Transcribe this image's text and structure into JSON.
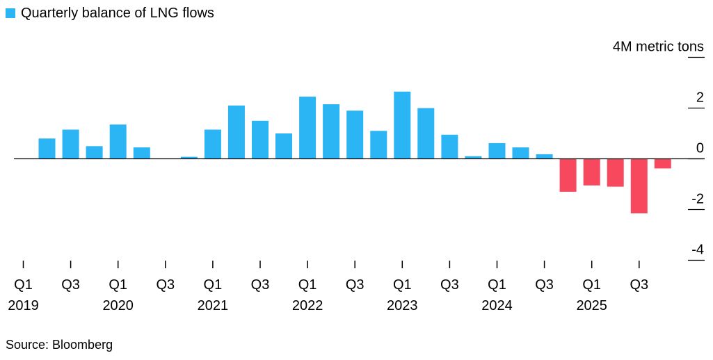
{
  "legend": {
    "label": "Quarterly balance of LNG flows",
    "color": "#2bb5f4"
  },
  "source": "Source: Bloomberg",
  "colors": {
    "positive": "#2bb5f4",
    "negative": "#f8485e",
    "axis": "#000000"
  },
  "chart_data": {
    "type": "bar",
    "title": "",
    "ylabel": "4M metric tons",
    "ylim": [
      -4,
      4
    ],
    "yticks": [
      -4,
      -2,
      0,
      2,
      4
    ],
    "ytick_labels": [
      "-4",
      "-2",
      "0",
      "2",
      "4M metric tons"
    ],
    "categories": [
      "Q1 2019",
      "Q2 2019",
      "Q3 2019",
      "Q4 2019",
      "Q1 2020",
      "Q2 2020",
      "Q3 2020",
      "Q4 2020",
      "Q1 2021",
      "Q2 2021",
      "Q3 2021",
      "Q4 2021",
      "Q1 2022",
      "Q2 2022",
      "Q3 2022",
      "Q4 2022",
      "Q1 2023",
      "Q2 2023",
      "Q3 2023",
      "Q4 2023",
      "Q1 2024",
      "Q2 2024",
      "Q3 2024",
      "Q4 2024",
      "Q1 2025",
      "Q2 2025",
      "Q3 2025",
      "Q4 2025"
    ],
    "series": [
      {
        "name": "Quarterly balance of LNG flows",
        "values": [
          0,
          0.8,
          1.15,
          0.5,
          1.35,
          0.45,
          0,
          0.08,
          1.15,
          2.1,
          1.5,
          1.0,
          2.45,
          2.15,
          1.9,
          1.1,
          2.65,
          2.0,
          0.95,
          0.1,
          0.62,
          0.45,
          0.18,
          -1.3,
          -1.05,
          -1.1,
          -2.15,
          -0.38
        ]
      }
    ],
    "xtick_labels": [
      {
        "quarter": "Q1",
        "year": "2019"
      },
      {
        "quarter": "Q3",
        "year": ""
      },
      {
        "quarter": "Q1",
        "year": "2020"
      },
      {
        "quarter": "Q3",
        "year": ""
      },
      {
        "quarter": "Q1",
        "year": "2021"
      },
      {
        "quarter": "Q3",
        "year": ""
      },
      {
        "quarter": "Q1",
        "year": "2022"
      },
      {
        "quarter": "Q3",
        "year": ""
      },
      {
        "quarter": "Q1",
        "year": "2023"
      },
      {
        "quarter": "Q3",
        "year": ""
      },
      {
        "quarter": "Q1",
        "year": "2024"
      },
      {
        "quarter": "Q3",
        "year": ""
      },
      {
        "quarter": "Q1",
        "year": "2025"
      },
      {
        "quarter": "Q3",
        "year": ""
      }
    ],
    "legend_position": "top-left",
    "grid": false
  }
}
